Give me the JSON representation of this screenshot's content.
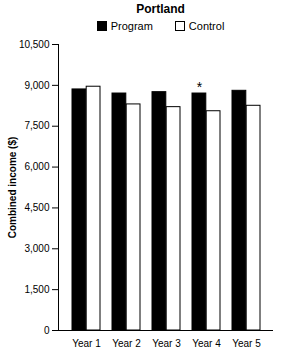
{
  "chart_data": {
    "type": "bar",
    "title": "Portland",
    "categories": [
      "Year 1",
      "Year 2",
      "Year 3",
      "Year 4",
      "Year 5"
    ],
    "series": [
      {
        "name": "Program",
        "color": "#000000",
        "values": [
          8850,
          8700,
          8750,
          8700,
          8800
        ]
      },
      {
        "name": "Control",
        "color": "#ffffff",
        "values": [
          8950,
          8300,
          8200,
          8050,
          8250
        ]
      }
    ],
    "y_label": "Combined income ($)",
    "ylim": [
      0,
      10500
    ],
    "yticks": [
      0,
      {
        "value": 1500,
        "label": "1,500"
      },
      {
        "value": 3000,
        "label": "3,000"
      },
      {
        "value": 4500,
        "label": "4,500"
      },
      {
        "value": 6000,
        "label": "6,000"
      },
      {
        "value": 7500,
        "label": "7,500"
      },
      {
        "value": 9000,
        "label": "9,000"
      },
      {
        "value": 10500,
        "label": "10,500"
      }
    ],
    "annotations": [
      {
        "category": "Year 4",
        "series": "Program",
        "text": "*"
      }
    ],
    "legend": "top",
    "grid": false
  }
}
